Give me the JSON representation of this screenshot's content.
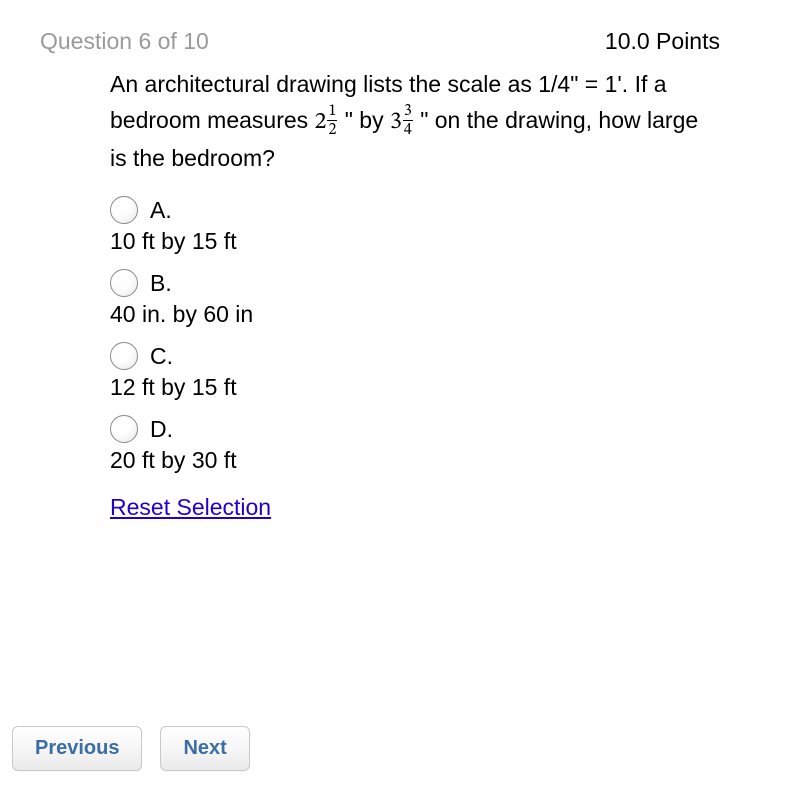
{
  "header": {
    "question_label": "Question 6 of 10",
    "points_label": "10.0 Points"
  },
  "question": {
    "pre_text": "An architectural drawing lists the scale as 1/4\" = 1'. If a bedroom measures ",
    "dim1_whole": "2",
    "dim1_num": "1",
    "dim1_den": "2",
    "mid_text": " \" by ",
    "dim2_whole": "3",
    "dim2_num": "3",
    "dim2_den": "4",
    "post_text": " \" on the drawing, how large is the bedroom?"
  },
  "options": [
    {
      "letter": "A.",
      "text": "10 ft by 15 ft"
    },
    {
      "letter": "B.",
      "text": "40 in. by 60 in"
    },
    {
      "letter": "C.",
      "text": "12 ft by 15 ft"
    },
    {
      "letter": "D.",
      "text": "20 ft by 30 ft"
    }
  ],
  "reset_label": "Reset Selection",
  "nav": {
    "previous": "Previous",
    "next": "Next"
  },
  "colors": {
    "question_number": "#9a9a9a",
    "text": "#000000",
    "link": "#2200cc",
    "button_text": "#3a6ea5",
    "button_border": "#c9c9c9",
    "radio_border": "#8a8a8a",
    "background": "#ffffff"
  }
}
